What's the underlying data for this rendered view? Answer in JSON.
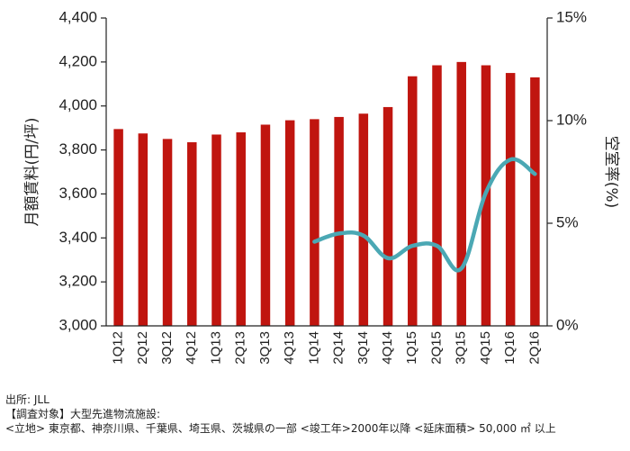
{
  "chart_data": {
    "type": "bar",
    "categories": [
      "1Q12",
      "2Q12",
      "3Q12",
      "4Q12",
      "1Q13",
      "2Q13",
      "3Q13",
      "4Q13",
      "1Q14",
      "2Q14",
      "3Q14",
      "4Q14",
      "1Q15",
      "2Q15",
      "3Q15",
      "4Q15",
      "1Q16",
      "2Q16"
    ],
    "series": [
      {
        "type": "bar",
        "axis": "left",
        "color": "#c0150f",
        "values": [
          3895,
          3875,
          3850,
          3835,
          3870,
          3880,
          3915,
          3935,
          3940,
          3950,
          3965,
          3995,
          4135,
          4185,
          4200,
          4185,
          4150,
          4130
        ]
      },
      {
        "type": "line",
        "axis": "right",
        "color": "#4ba8b4",
        "values": [
          null,
          null,
          null,
          null,
          null,
          null,
          null,
          null,
          4.1,
          4.5,
          4.4,
          3.3,
          3.9,
          3.9,
          2.8,
          6.5,
          8.1,
          7.4
        ]
      }
    ],
    "ylabel": "月額賃料(円/坪)",
    "y2label": "空室率(%)",
    "ylim": [
      3000,
      4400
    ],
    "y2lim": [
      0,
      15
    ],
    "yticks": [
      "3,000",
      "3,200",
      "3,400",
      "3,600",
      "3,800",
      "4,000",
      "4,200",
      "4,400"
    ],
    "y2ticks": [
      "0%",
      "5%",
      "10%",
      "15%"
    ],
    "grid": false
  },
  "notes": {
    "source": "出所: JLL",
    "survey_target": "【調査対象】大型先進物流施設:",
    "criteria": "<立地> 東京都、神奈川県、千葉県、埼玉県、茨城県の一部 <竣工年>2000年以降 <延床面積> 50,000 ㎡ 以上"
  }
}
